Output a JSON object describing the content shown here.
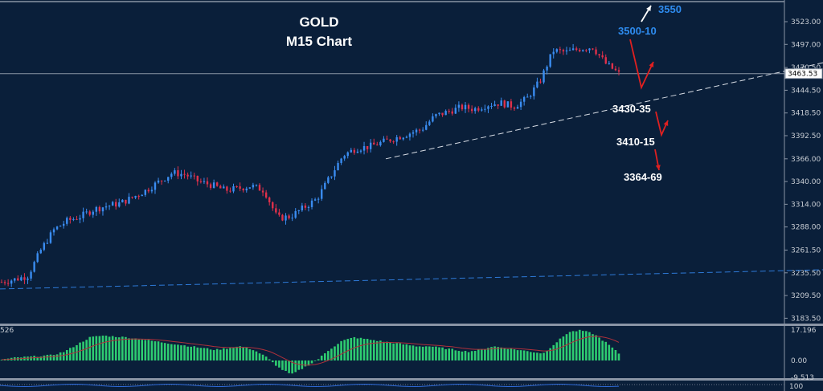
{
  "header": {
    "symbol": "GOLD",
    "timeframe": "M15 Chart"
  },
  "annotations": {
    "target_high": "3550",
    "resistance": "3500-10",
    "support_1": "3430-35",
    "support_2": "3410-15",
    "support_3": "3364-69"
  },
  "colors": {
    "background": "#0a1f3a",
    "bull_candle": "#3a8cf0",
    "bear_candle": "#e0304a",
    "histogram": "#2ecc71",
    "signal_line": "#b0303a",
    "blue_annotation": "#2e8cf0",
    "arrow": "#e02020"
  },
  "indicator": {
    "left_label": "526",
    "max_label": "17.196",
    "zero_label": "0.00",
    "min_label": "-9.513",
    "sub_label": "100"
  },
  "chart_data": {
    "type": "candlestick",
    "title": "GOLD M15 Chart",
    "current_price": 3463.53,
    "ylim": [
      3170,
      3545
    ],
    "y_ticks": [
      3523.0,
      3497.0,
      3470.5,
      3444.5,
      3418.5,
      3392.5,
      3366.0,
      3340.0,
      3314.0,
      3288.0,
      3261.5,
      3235.5,
      3209.5,
      3183.5
    ],
    "y_tick_labels": [
      "3523.00",
      "3497.00",
      "3470.50",
      "3444.50",
      "3418.50",
      "3392.50",
      "3366.00",
      "3340.00",
      "3314.00",
      "3288.00",
      "3261.50",
      "3235.50",
      "3209.50",
      "3183.50"
    ],
    "close_path_approx": [
      3225,
      3228,
      3232,
      3262,
      3285,
      3295,
      3300,
      3308,
      3312,
      3315,
      3322,
      3330,
      3340,
      3350,
      3348,
      3340,
      3336,
      3330,
      3332,
      3335,
      3330,
      3298,
      3300,
      3310,
      3320,
      3345,
      3370,
      3378,
      3380,
      3385,
      3390,
      3395,
      3400,
      3415,
      3420,
      3425,
      3423,
      3428,
      3430,
      3426,
      3435,
      3455,
      3490,
      3488,
      3492,
      3494,
      3475,
      3463.53
    ],
    "trendlines": [
      {
        "style": "white-dashed",
        "from_price": 3366,
        "to_price": 3476
      },
      {
        "style": "blue-dashed",
        "from_price": 3217,
        "to_price": 3239
      }
    ],
    "indicator_histogram_approx": [
      0.5,
      1.5,
      2,
      2.5,
      3,
      5,
      9,
      13,
      14,
      13.5,
      13,
      12,
      11,
      10,
      9,
      8,
      7,
      6,
      7,
      8,
      6,
      2,
      -4,
      -8,
      -4,
      0,
      6,
      11,
      13,
      12,
      11,
      10,
      9,
      8,
      8,
      7,
      6,
      5,
      6,
      8,
      7,
      6,
      5,
      4,
      10,
      16,
      17,
      15,
      10,
      4
    ],
    "indicator_range": [
      -9.513,
      17.196
    ]
  }
}
